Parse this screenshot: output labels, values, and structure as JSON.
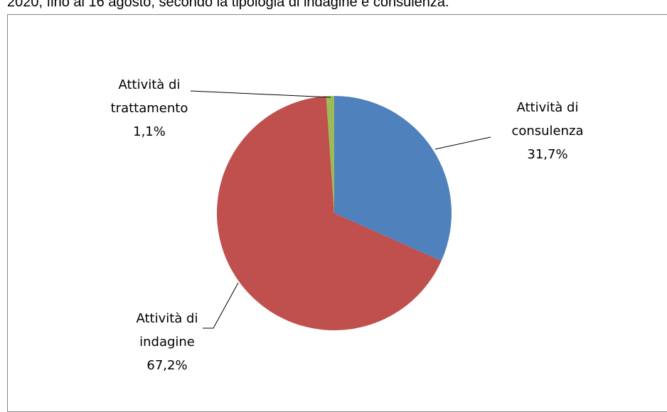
{
  "chart_data": {
    "type": "pie",
    "title": "2020, fino al 16 agosto, secondo la tipologia di indagine e consulenza.",
    "categories": [
      "Attività di consulenza",
      "Attività di indagine",
      "Attività di trattamento"
    ],
    "values": [
      31.7,
      67.2,
      1.1
    ],
    "value_labels": [
      "31,7%",
      "67,2%",
      "1,1%"
    ],
    "colors": [
      "#4f81bd",
      "#c0504d",
      "#9bbb59"
    ]
  }
}
